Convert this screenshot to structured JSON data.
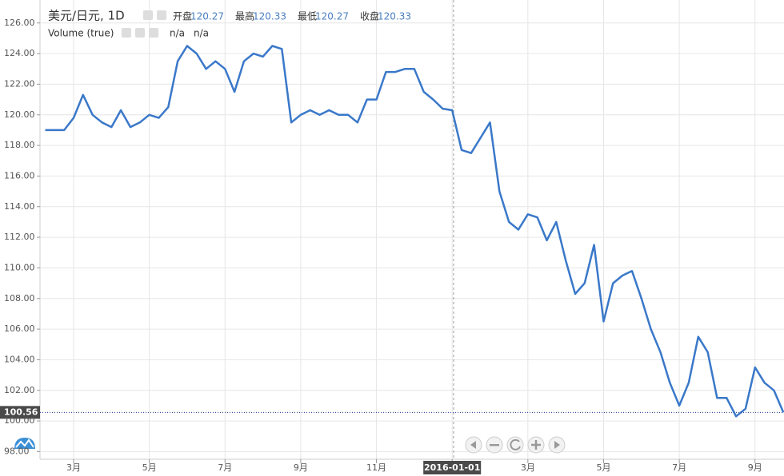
{
  "chart_data": {
    "type": "line",
    "title": "美元/日元, 1D",
    "legend_values": [
      {
        "label": "开盘",
        "value": 120.27
      },
      {
        "label": "最高",
        "value": 120.33
      },
      {
        "label": "最低",
        "value": 120.27
      },
      {
        "label": "收盘",
        "value": 120.33
      }
    ],
    "indicator": "Volume (true)",
    "indicator_values": [
      "n/a",
      "n/a"
    ],
    "categories": [
      null,
      null,
      null,
      "3月",
      null,
      null,
      null,
      null,
      null,
      null,
      null,
      "5月",
      null,
      null,
      null,
      null,
      null,
      null,
      null,
      "7月",
      null,
      null,
      null,
      null,
      null,
      null,
      null,
      "9月",
      null,
      null,
      null,
      null,
      null,
      null,
      null,
      "11月",
      null,
      null,
      null,
      null,
      null,
      null,
      null,
      "2016-01-01",
      null,
      null,
      null,
      null,
      null,
      null,
      null,
      "3月",
      null,
      null,
      null,
      null,
      null,
      null,
      null,
      "5月",
      null,
      null,
      null,
      null,
      null,
      null,
      null,
      "7月",
      null,
      null,
      null,
      null,
      null,
      null,
      null,
      "9月",
      null,
      null,
      null
    ],
    "series": [
      {
        "color": "#3a78c9",
        "values": [
          119.0,
          119.0,
          119.0,
          119.8,
          121.3,
          120.0,
          119.5,
          119.2,
          120.3,
          119.2,
          119.5,
          120.0,
          119.8,
          120.5,
          123.5,
          124.5,
          124.0,
          123.0,
          123.5,
          123.0,
          121.5,
          123.5,
          124.0,
          123.8,
          124.5,
          124.3,
          119.5,
          120.0,
          120.3,
          120.0,
          120.3,
          120.0,
          120.0,
          119.5,
          121.0,
          121.0,
          122.8,
          122.8,
          123.0,
          123.0,
          121.5,
          121.0,
          120.4,
          120.3,
          117.7,
          117.5,
          118.5,
          119.5,
          115.0,
          113.0,
          112.5,
          113.5,
          113.3,
          111.8,
          113.0,
          110.5,
          108.3,
          109.0,
          111.5,
          106.5,
          109.0,
          109.5,
          109.8,
          108.0,
          106.0,
          104.5,
          102.5,
          101.0,
          102.5,
          105.5,
          104.5,
          101.5,
          101.5,
          100.3,
          100.8,
          103.5,
          102.5,
          102.0,
          100.56
        ]
      }
    ],
    "ylim": [
      97.5,
      127.5
    ],
    "yticks": [
      {
        "value": 98,
        "label": "98.00"
      },
      {
        "value": 100,
        "label": "100.00"
      },
      {
        "value": 102,
        "label": "102.00"
      },
      {
        "value": 104,
        "label": "104.00"
      },
      {
        "value": 106,
        "label": "106.00"
      },
      {
        "value": 108,
        "label": "108.00"
      },
      {
        "value": 110,
        "label": "110.00"
      },
      {
        "value": 112,
        "label": "112.00"
      },
      {
        "value": 114,
        "label": "114.00"
      },
      {
        "value": 116,
        "label": "116.00"
      },
      {
        "value": 118,
        "label": "118.00"
      },
      {
        "value": 120,
        "label": "120.00"
      },
      {
        "value": 122,
        "label": "122.00"
      },
      {
        "value": 124,
        "label": "124.00"
      },
      {
        "value": 126,
        "label": "126.00"
      }
    ],
    "grid": true
  }
}
